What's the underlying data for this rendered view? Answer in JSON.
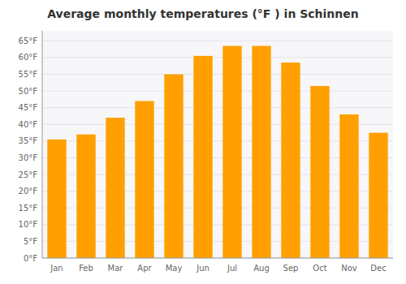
{
  "chart_data": {
    "type": "bar",
    "title": "Average monthly temperatures (°F ) in Schinnen",
    "categories": [
      "Jan",
      "Feb",
      "Mar",
      "Apr",
      "May",
      "Jun",
      "Jul",
      "Aug",
      "Sep",
      "Oct",
      "Nov",
      "Dec"
    ],
    "values": [
      35.5,
      37.0,
      42.0,
      47.0,
      55.0,
      60.5,
      63.5,
      63.5,
      58.5,
      51.5,
      43.0,
      37.5
    ],
    "color": "#FFA000",
    "ylim": [
      0,
      68
    ],
    "yticks": [
      {
        "value": 0,
        "label": "0°F"
      },
      {
        "value": 5,
        "label": "5°F"
      },
      {
        "value": 10,
        "label": "10°F"
      },
      {
        "value": 15,
        "label": "15°F"
      },
      {
        "value": 20,
        "label": "20°F"
      },
      {
        "value": 25,
        "label": "25°F"
      },
      {
        "value": 30,
        "label": "30°F"
      },
      {
        "value": 35,
        "label": "35°F"
      },
      {
        "value": 40,
        "label": "40°F"
      },
      {
        "value": 45,
        "label": "45°F"
      },
      {
        "value": 50,
        "label": "50°F"
      },
      {
        "value": 55,
        "label": "55°F"
      },
      {
        "value": 60,
        "label": "60°F"
      },
      {
        "value": 65,
        "label": "65°F"
      }
    ],
    "grid": true
  }
}
